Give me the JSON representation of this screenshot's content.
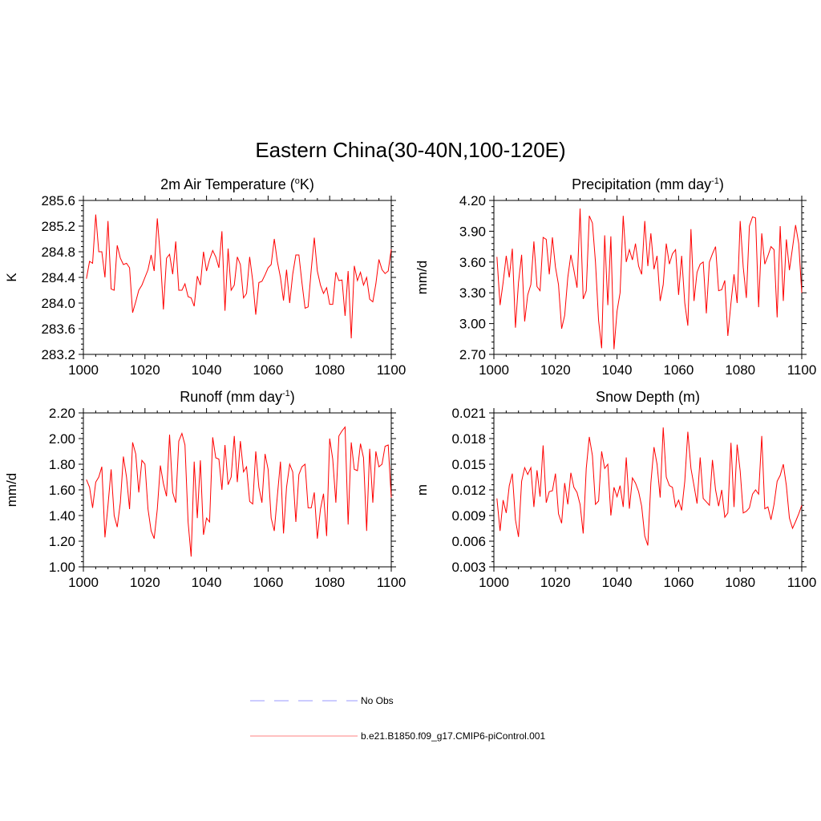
{
  "title": "Eastern China(30-40N,100-120E)",
  "legend": [
    {
      "label": "No Obs",
      "color": "#9999ff",
      "style": "dashed"
    },
    {
      "label": "b.e21.B1850.f09_g17.CMIP6-piControl.001",
      "color": "#ff8080",
      "style": "solid"
    }
  ],
  "series_color": "#ff0000",
  "chart_data": [
    {
      "type": "line",
      "title_main": "2m Air Temperature (",
      "title_sup": "o",
      "title_tail": "K)",
      "ylabel": "K",
      "xlim": [
        1000,
        1100
      ],
      "ylim": [
        283.2,
        285.6
      ],
      "ytick_values": [
        283.2,
        283.6,
        284.0,
        284.4,
        284.8,
        285.2,
        285.6
      ],
      "yticks": [
        "283.2",
        "283.6",
        "284.0",
        "284.4",
        "284.8",
        "285.2",
        "285.6"
      ],
      "xticks": [
        "1000",
        "1020",
        "1040",
        "1060",
        "1080",
        "1100"
      ],
      "x_start": 1001,
      "values": [
        284.38,
        284.65,
        284.62,
        285.38,
        284.8,
        284.8,
        284.4,
        285.28,
        284.22,
        284.2,
        284.9,
        284.7,
        284.6,
        284.62,
        284.55,
        283.85,
        284.02,
        284.2,
        284.28,
        284.4,
        284.52,
        284.75,
        284.5,
        285.32,
        284.72,
        283.9,
        284.7,
        284.76,
        284.45,
        284.96,
        284.2,
        284.2,
        284.3,
        284.1,
        284.08,
        283.95,
        284.42,
        284.28,
        284.8,
        284.5,
        284.68,
        284.82,
        284.72,
        284.55,
        285.12,
        283.88,
        284.85,
        284.2,
        284.28,
        284.72,
        284.6,
        284.08,
        284.15,
        284.72,
        284.35,
        283.82,
        284.32,
        284.34,
        284.44,
        284.55,
        284.6,
        285.0,
        284.65,
        284.4,
        284.04,
        284.52,
        284.0,
        284.45,
        284.75,
        284.75,
        284.32,
        283.92,
        283.94,
        284.52,
        285.02,
        284.5,
        284.28,
        284.15,
        284.24,
        283.98,
        283.98,
        284.48,
        284.35,
        284.36,
        283.8,
        284.5,
        283.45,
        284.58,
        284.35,
        284.48,
        284.28,
        284.4,
        284.06,
        284.02,
        284.3,
        284.68,
        284.52,
        284.46,
        284.5,
        284.84
      ]
    },
    {
      "type": "line",
      "title_main": "Precipitation (mm day",
      "title_sup": "-1",
      "title_tail": ")",
      "ylabel": "mm/d",
      "xlim": [
        1000,
        1100
      ],
      "ylim": [
        2.7,
        4.2
      ],
      "ytick_values": [
        2.7,
        3.0,
        3.3,
        3.6,
        3.9,
        4.2
      ],
      "yticks": [
        "2.70",
        "3.00",
        "3.30",
        "3.60",
        "3.90",
        "4.20"
      ],
      "xticks": [
        "1000",
        "1020",
        "1040",
        "1060",
        "1080",
        "1100"
      ],
      "x_start": 1001,
      "values": [
        3.65,
        3.18,
        3.4,
        3.66,
        3.45,
        3.73,
        2.96,
        3.4,
        3.67,
        3.02,
        3.28,
        3.38,
        3.8,
        3.36,
        3.32,
        3.84,
        3.82,
        3.48,
        3.84,
        3.55,
        3.38,
        2.95,
        3.08,
        3.45,
        3.67,
        3.52,
        3.35,
        4.12,
        3.24,
        3.32,
        4.05,
        3.98,
        3.6,
        3.03,
        2.76,
        3.86,
        3.18,
        3.85,
        2.75,
        3.12,
        3.3,
        4.05,
        3.6,
        3.72,
        3.62,
        3.78,
        3.56,
        3.48,
        4.0,
        3.56,
        3.88,
        3.53,
        3.66,
        3.22,
        3.38,
        3.78,
        3.58,
        3.68,
        3.72,
        3.28,
        3.66,
        3.2,
        2.98,
        3.92,
        3.22,
        3.5,
        3.58,
        3.6,
        3.1,
        3.6,
        3.68,
        3.75,
        3.32,
        3.33,
        3.42,
        2.88,
        3.2,
        3.48,
        3.2,
        4.0,
        3.55,
        3.25,
        3.95,
        4.04,
        4.03,
        3.16,
        3.88,
        3.58,
        3.66,
        3.75,
        3.72,
        3.06,
        3.95,
        3.22,
        3.82,
        3.52,
        3.74,
        3.96,
        3.78,
        3.3
      ]
    },
    {
      "type": "line",
      "title_main": "Runoff (mm day",
      "title_sup": "-1",
      "title_tail": ")",
      "ylabel": "mm/d",
      "xlim": [
        1000,
        1100
      ],
      "ylim": [
        1.0,
        2.2
      ],
      "ytick_values": [
        1.0,
        1.2,
        1.4,
        1.6,
        1.8,
        2.0,
        2.2
      ],
      "yticks": [
        "1.00",
        "1.20",
        "1.40",
        "1.60",
        "1.80",
        "2.00",
        "2.20"
      ],
      "xticks": [
        "1000",
        "1020",
        "1040",
        "1060",
        "1080",
        "1100"
      ],
      "x_start": 1001,
      "values": [
        1.68,
        1.62,
        1.46,
        1.66,
        1.7,
        1.78,
        1.23,
        1.48,
        1.76,
        1.4,
        1.31,
        1.5,
        1.86,
        1.7,
        1.45,
        1.97,
        1.88,
        1.58,
        1.83,
        1.8,
        1.45,
        1.28,
        1.22,
        1.45,
        1.79,
        1.65,
        1.55,
        2.03,
        1.58,
        1.5,
        1.98,
        2.04,
        1.95,
        1.35,
        1.08,
        1.82,
        1.38,
        1.83,
        1.25,
        1.38,
        1.35,
        2.01,
        1.85,
        1.84,
        1.6,
        1.95,
        1.64,
        1.7,
        2.02,
        1.66,
        1.98,
        1.74,
        1.78,
        1.51,
        1.49,
        1.9,
        1.62,
        1.5,
        1.88,
        1.76,
        1.38,
        1.28,
        1.55,
        1.82,
        1.26,
        1.62,
        1.8,
        1.74,
        1.35,
        1.72,
        1.78,
        1.8,
        1.46,
        1.46,
        1.58,
        1.22,
        1.45,
        1.57,
        1.24,
        2.0,
        1.84,
        1.5,
        2.02,
        2.06,
        2.09,
        1.33,
        1.97,
        1.76,
        1.75,
        1.96,
        1.85,
        1.28,
        1.92,
        1.5,
        1.9,
        1.78,
        1.8,
        1.94,
        1.95,
        1.54
      ]
    },
    {
      "type": "line",
      "title_main": "Snow Depth (m)",
      "title_sup": "",
      "title_tail": "",
      "ylabel": "m",
      "xlim": [
        1000,
        1100
      ],
      "ylim": [
        0.003,
        0.021
      ],
      "ytick_values": [
        0.003,
        0.006,
        0.009,
        0.012,
        0.015,
        0.018,
        0.021
      ],
      "yticks": [
        "0.003",
        "0.006",
        "0.009",
        "0.012",
        "0.015",
        "0.018",
        "0.021"
      ],
      "xticks": [
        "1000",
        "1020",
        "1040",
        "1060",
        "1080",
        "1100"
      ],
      "x_start": 1001,
      "values": [
        0.011,
        0.0072,
        0.0108,
        0.0093,
        0.0125,
        0.0139,
        0.0085,
        0.0065,
        0.013,
        0.0146,
        0.0138,
        0.0146,
        0.01,
        0.0143,
        0.0112,
        0.0172,
        0.0105,
        0.0118,
        0.0119,
        0.0139,
        0.0092,
        0.0081,
        0.0128,
        0.0103,
        0.014,
        0.0123,
        0.0117,
        0.0103,
        0.0069,
        0.0145,
        0.0182,
        0.016,
        0.0103,
        0.0107,
        0.0165,
        0.0145,
        0.015,
        0.009,
        0.0123,
        0.0112,
        0.0125,
        0.01,
        0.0158,
        0.0098,
        0.0134,
        0.0128,
        0.0118,
        0.0101,
        0.0066,
        0.0055,
        0.0128,
        0.017,
        0.015,
        0.0111,
        0.0193,
        0.0135,
        0.0125,
        0.0123,
        0.01,
        0.0108,
        0.0096,
        0.013,
        0.0188,
        0.0145,
        0.0125,
        0.0104,
        0.0158,
        0.011,
        0.0106,
        0.0102,
        0.0155,
        0.012,
        0.0101,
        0.012,
        0.0088,
        0.0093,
        0.0175,
        0.01,
        0.0173,
        0.0142,
        0.0093,
        0.0095,
        0.0099,
        0.0115,
        0.012,
        0.0115,
        0.0183,
        0.0098,
        0.01,
        0.0085,
        0.0103,
        0.013,
        0.0137,
        0.015,
        0.0125,
        0.0087,
        0.0075,
        0.0083,
        0.0092,
        0.0102
      ]
    }
  ]
}
